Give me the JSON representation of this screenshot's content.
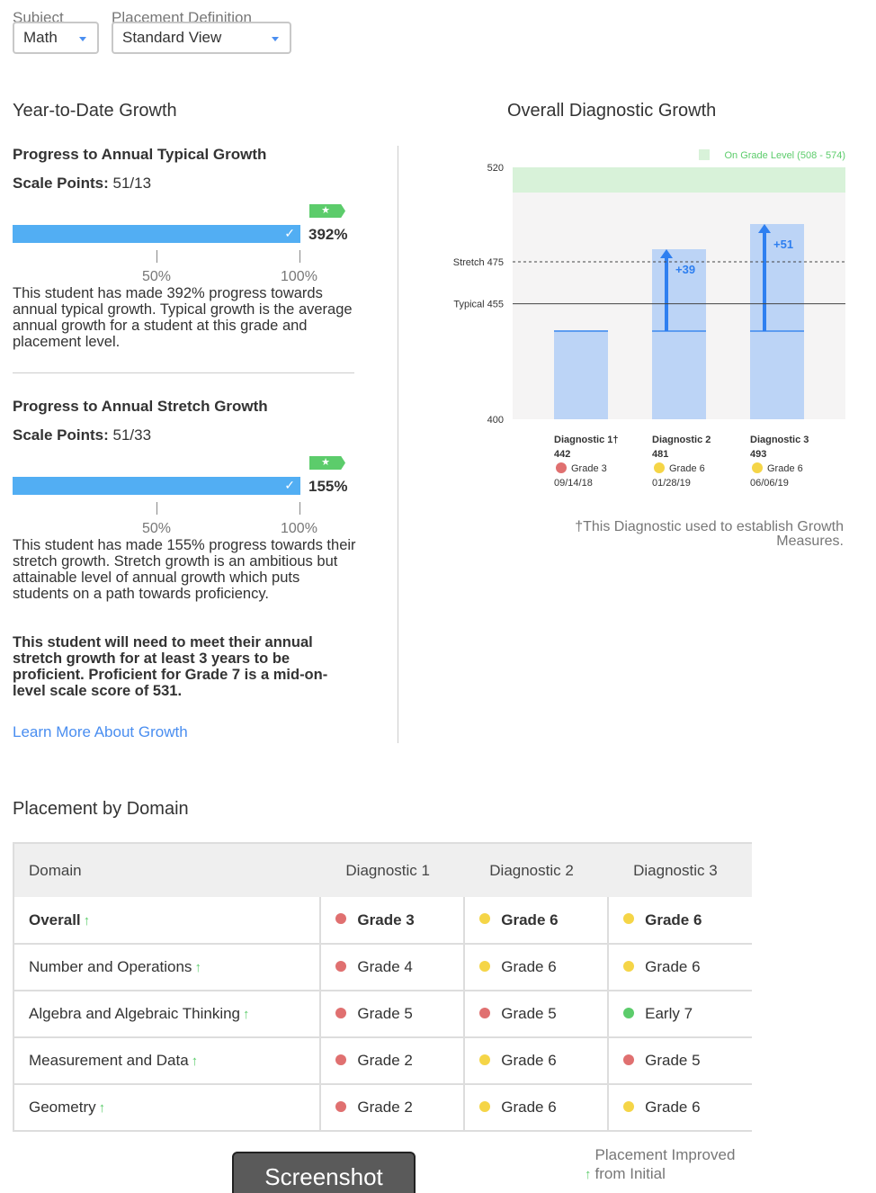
{
  "filters": {
    "subject": {
      "label": "Subject",
      "value": "Math"
    },
    "placement": {
      "label": "Placement Definition",
      "value": "Standard View"
    }
  },
  "ytd": {
    "title": "Year-to-Date Growth",
    "typical": {
      "heading": "Progress to Annual Typical Growth",
      "scale_label": "Scale Points:",
      "scale_value": "51/13",
      "percent": "392%",
      "progress": 3.92,
      "tick_50": "50%",
      "tick_100": "100%",
      "description": "This student has made 392% progress towards annual typical growth. Typical growth is the average annual growth for a student at this grade and placement level."
    },
    "stretch": {
      "heading": "Progress to Annual Stretch Growth",
      "scale_label": "Scale Points:",
      "scale_value": "51/33",
      "percent": "155%",
      "progress": 1.55,
      "tick_50": "50%",
      "tick_100": "100%",
      "description": "This student has made 155% progress towards their stretch growth. Stretch growth is an ambitious but attainable level of annual growth which puts students on a path towards proficiency.",
      "note": "This student will need to meet their annual stretch growth for at least 3 years to be proficient. Proficient for Grade 7 is a mid-on-level scale score of 531."
    },
    "learn_more": "Learn More About Growth"
  },
  "chart_data": {
    "type": "bar",
    "title": "Overall Diagnostic Growth",
    "ylim": [
      400,
      520
    ],
    "yticks": [
      "520",
      "400"
    ],
    "on_grade_band": {
      "label": "On Grade Level (508 - 574)",
      "from": 508,
      "to": 574,
      "color": "#d8f2d9"
    },
    "reference_lines": [
      {
        "label": "Stretch 475",
        "value": 475,
        "style": "dashed"
      },
      {
        "label": "Typical 455",
        "value": 455,
        "style": "solid"
      }
    ],
    "baseline": 442,
    "categories": [
      "Diagnostic 1†",
      "Diagnostic 2",
      "Diagnostic 3"
    ],
    "values": [
      442,
      481,
      493
    ],
    "score_labels": [
      "442",
      "481",
      "493"
    ],
    "growth_labels": [
      "",
      "+39",
      "+51"
    ],
    "grades": [
      "Grade 3",
      "Grade 6",
      "Grade 6"
    ],
    "grade_colors": [
      "#e07070",
      "#f5d547",
      "#f5d547"
    ],
    "dates": [
      "09/14/18",
      "01/28/19",
      "06/06/19"
    ]
  },
  "chart_footnote": "†This Diagnostic used to establish Growth Measures.",
  "placement": {
    "title": "Placement by Domain",
    "headers": [
      "Domain",
      "Diagnostic 1",
      "Diagnostic 2",
      "Diagnostic 3"
    ],
    "rows": [
      {
        "domain": "Overall",
        "d1": "Grade 3",
        "d2": "Grade 6",
        "d3": "Grade 6",
        "c1": "#e07070",
        "c2": "#f5d547",
        "c3": "#f5d547"
      },
      {
        "domain": "Number and Operations",
        "d1": "Grade 4",
        "d2": "Grade 6",
        "d3": "Grade 6",
        "c1": "#e07070",
        "c2": "#f5d547",
        "c3": "#f5d547"
      },
      {
        "domain": "Algebra and Algebraic Thinking",
        "d1": "Grade 5",
        "d2": "Grade 5",
        "d3": "Early 7",
        "c1": "#e07070",
        "c2": "#e07070",
        "c3": "#5ccc6b"
      },
      {
        "domain": "Measurement and Data",
        "d1": "Grade 2",
        "d2": "Grade 6",
        "d3": "Grade 5",
        "c1": "#e07070",
        "c2": "#f5d547",
        "c3": "#e07070"
      },
      {
        "domain": "Geometry",
        "d1": "Grade 2",
        "d2": "Grade 6",
        "d3": "Grade 6",
        "c1": "#e07070",
        "c2": "#f5d547",
        "c3": "#f5d547"
      }
    ],
    "legend": "Placement Improved from Initial",
    "improved_icon": "arrow-up-icon"
  },
  "screenshot_button": "Screenshot"
}
